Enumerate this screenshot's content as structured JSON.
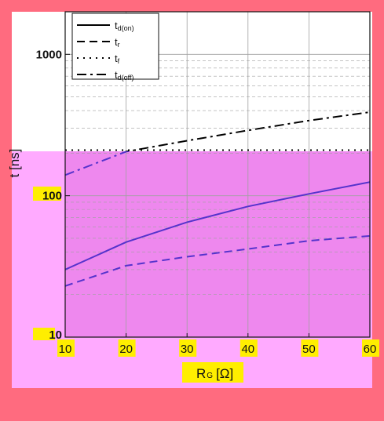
{
  "chart_data": {
    "type": "line",
    "title": "",
    "xlabel": "R",
    "xlabel_sub": "G",
    "xlabel_unit": "[Ω]",
    "ylabel": "t [ns]",
    "x": [
      10,
      20,
      30,
      40,
      50,
      60
    ],
    "xlim": [
      10,
      60
    ],
    "ylim": [
      10,
      2000
    ],
    "yscale": "log",
    "x_ticks": [
      "10",
      "20",
      "30",
      "40",
      "50",
      "60"
    ],
    "y_ticks": [
      {
        "value": 10,
        "label": "10"
      },
      {
        "value": 100,
        "label": "100"
      },
      {
        "value": 1000,
        "label": "1000"
      }
    ],
    "grid": true,
    "legend_position": "top-left",
    "series": [
      {
        "name": "t",
        "sub": "d(on)",
        "style": "solid",
        "values": [
          30,
          47,
          65,
          84,
          103,
          125
        ]
      },
      {
        "name": "t",
        "sub": "r",
        "style": "dashed",
        "values": [
          23,
          32,
          37,
          42,
          48,
          52
        ]
      },
      {
        "name": "t",
        "sub": "f",
        "style": "dotted",
        "values": [
          210,
          210,
          210,
          210,
          210,
          210
        ]
      },
      {
        "name": "t",
        "sub": "d(off)",
        "style": "dashdot",
        "values": [
          140,
          205,
          245,
          290,
          340,
          390
        ]
      }
    ]
  },
  "colors": {
    "page_background": "#ff6b7f",
    "upper_panel": "#ffffff",
    "lower_panel": "#ffaaff",
    "plot_lower": "#ee88ee",
    "grid": "#a0a0a0",
    "line_upper": "#000000",
    "line_lower": "#5533cc",
    "tick_highlight": "#ffee00"
  }
}
